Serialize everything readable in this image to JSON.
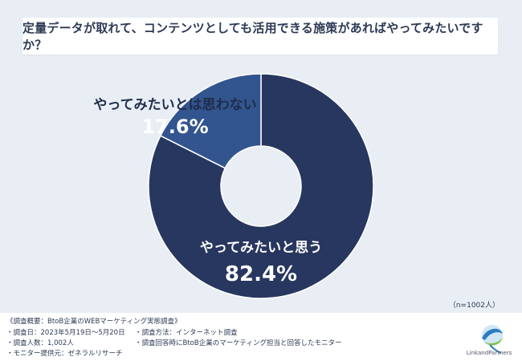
{
  "title": "定量データが取れて、コンテンツとしても活用できる施策があればやってみたいですか？",
  "n_note": "（n=1002人）",
  "colors": {
    "main_slice": "#27375f",
    "minor_slice": "#32558f",
    "background": "#e9eef5"
  },
  "chart_data": {
    "type": "pie",
    "variant": "donut",
    "categories": [
      "やってみたいと思う",
      "やってみたいとは思わない"
    ],
    "values": [
      82.4,
      17.6
    ],
    "value_labels": [
      "82.4%",
      "17.6%"
    ],
    "title": "定量データが取れて、コンテンツとしても活用できる施策があればやってみたいですか？"
  },
  "footer": {
    "heading": "《調査概要：BtoB企業のWEBマーケティング実態調査》",
    "col1": [
      "・調査日：2023年5月19日～5月20日",
      "・調査人数：1,002人",
      "・モニター提供元：ゼネラルリサーチ"
    ],
    "col2": [
      "・調査方法：インターネット調査",
      "・調査回答時にBtoB企業のマーケティング担当と回答したモニター"
    ]
  },
  "logo": {
    "text": "LinkandPartners",
    "icon": "globe-swirl-logo"
  }
}
